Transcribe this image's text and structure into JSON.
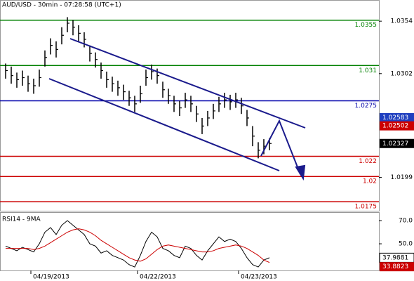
{
  "chart_data": [
    {
      "type": "ohlc",
      "title": "AUD/USD - 30min - 07:28:58 (UTC+1)",
      "color": "#000000",
      "xlim": [
        -1,
        66.5
      ],
      "ylim": [
        1.0166,
        1.0375
      ],
      "yticks": [
        1.0354,
        1.0302,
        1.0199
      ],
      "close": [
        1.0305,
        1.03,
        1.0296,
        1.0298,
        1.0292,
        1.029,
        1.0298,
        1.0318,
        1.033,
        1.0326,
        1.034,
        1.0352,
        1.0348,
        1.0342,
        1.0336,
        1.0322,
        1.0316,
        1.0305,
        1.0296,
        1.0292,
        1.0288,
        1.0284,
        1.0278,
        1.0272,
        1.0282,
        1.0298,
        1.0304,
        1.03,
        1.0286,
        1.028,
        1.0272,
        1.0268,
        1.0276,
        1.0272,
        1.0262,
        1.025,
        1.0258,
        1.0265,
        1.0272,
        1.0276,
        1.0274,
        1.0276,
        1.027,
        1.0258,
        1.024,
        1.0226,
        1.023,
        1.02327
      ],
      "high": [
        1.0312,
        1.0309,
        1.0303,
        1.0305,
        1.03,
        1.0297,
        1.0306,
        1.0325,
        1.0337,
        1.0334,
        1.0348,
        1.0358,
        1.0355,
        1.035,
        1.0343,
        1.033,
        1.0323,
        1.0313,
        1.0304,
        1.0299,
        1.0295,
        1.0291,
        1.0285,
        1.028,
        1.029,
        1.0306,
        1.0311,
        1.0307,
        1.0294,
        1.0287,
        1.028,
        1.0275,
        1.0283,
        1.028,
        1.027,
        1.0258,
        1.0265,
        1.0272,
        1.0279,
        1.0283,
        1.0281,
        1.0283,
        1.0278,
        1.0266,
        1.025,
        1.0234,
        1.0237,
        1.0238
      ],
      "low": [
        1.0297,
        1.0292,
        1.0288,
        1.029,
        1.0284,
        1.0282,
        1.0289,
        1.0309,
        1.0321,
        1.0318,
        1.0331,
        1.0343,
        1.034,
        1.0334,
        1.0328,
        1.0314,
        1.0308,
        1.0297,
        1.0288,
        1.0284,
        1.028,
        1.0276,
        1.027,
        1.0264,
        1.0273,
        1.029,
        1.0296,
        1.0292,
        1.0278,
        1.0272,
        1.0264,
        1.026,
        1.0268,
        1.0264,
        1.0254,
        1.0242,
        1.025,
        1.0257,
        1.0264,
        1.0268,
        1.0266,
        1.0268,
        1.0262,
        1.025,
        1.023,
        1.0218,
        1.0222,
        1.0226
      ],
      "levels": [
        {
          "value": 1.0355,
          "color": "#008000"
        },
        {
          "value": 1.031,
          "color": "#008000"
        },
        {
          "value": 1.0275,
          "color": "#0000aa"
        },
        {
          "value": 1.022,
          "color": "#cc0000"
        },
        {
          "value": 1.02,
          "color": "#cc0000"
        },
        {
          "value": 1.0175,
          "color": "#cc0000"
        }
      ],
      "price_labels": [
        {
          "value": 1.02583,
          "color": "#1f3fbf"
        },
        {
          "value": 1.02502,
          "color": "#cc0000"
        }
      ],
      "last_label_color": "#000000"
    },
    {
      "type": "line",
      "label": "RSI14 - 9MA",
      "xlim": [
        -1,
        66.5
      ],
      "ylim": [
        27,
        77.3
      ],
      "yticks": [
        {
          "value": 70,
          "label": "70.0"
        },
        {
          "value": 50,
          "label": "50.0"
        }
      ],
      "xticks": [
        {
          "value": 4.5,
          "label": "04/19/2013"
        },
        {
          "value": 23.5,
          "label": "04/22/2013"
        },
        {
          "value": 41.5,
          "label": "04/23/2013"
        }
      ],
      "series": [
        {
          "color": "#000000",
          "values": [
            48,
            46,
            44,
            47,
            45,
            43,
            50,
            60,
            64,
            58,
            66,
            70,
            66,
            62,
            58,
            50,
            48,
            42,
            44,
            40,
            38,
            36,
            32,
            30,
            40,
            52,
            60,
            56,
            46,
            44,
            40,
            38,
            48,
            46,
            40,
            36,
            44,
            50,
            56,
            52,
            54,
            52,
            46,
            38,
            32,
            30,
            36,
            37.9881
          ]
        },
        {
          "color": "#cc0000",
          "values": [
            46,
            46,
            46,
            46,
            46,
            45,
            46,
            48,
            51,
            54,
            57,
            60,
            62,
            63,
            62,
            60,
            57,
            53,
            50,
            47,
            44,
            41,
            38,
            36,
            35,
            37,
            41,
            45,
            48,
            49,
            48,
            47,
            46,
            45,
            44,
            43,
            43,
            44,
            46,
            47,
            48,
            49,
            48,
            46,
            43,
            40,
            36,
            33.8823
          ]
        }
      ]
    }
  ]
}
